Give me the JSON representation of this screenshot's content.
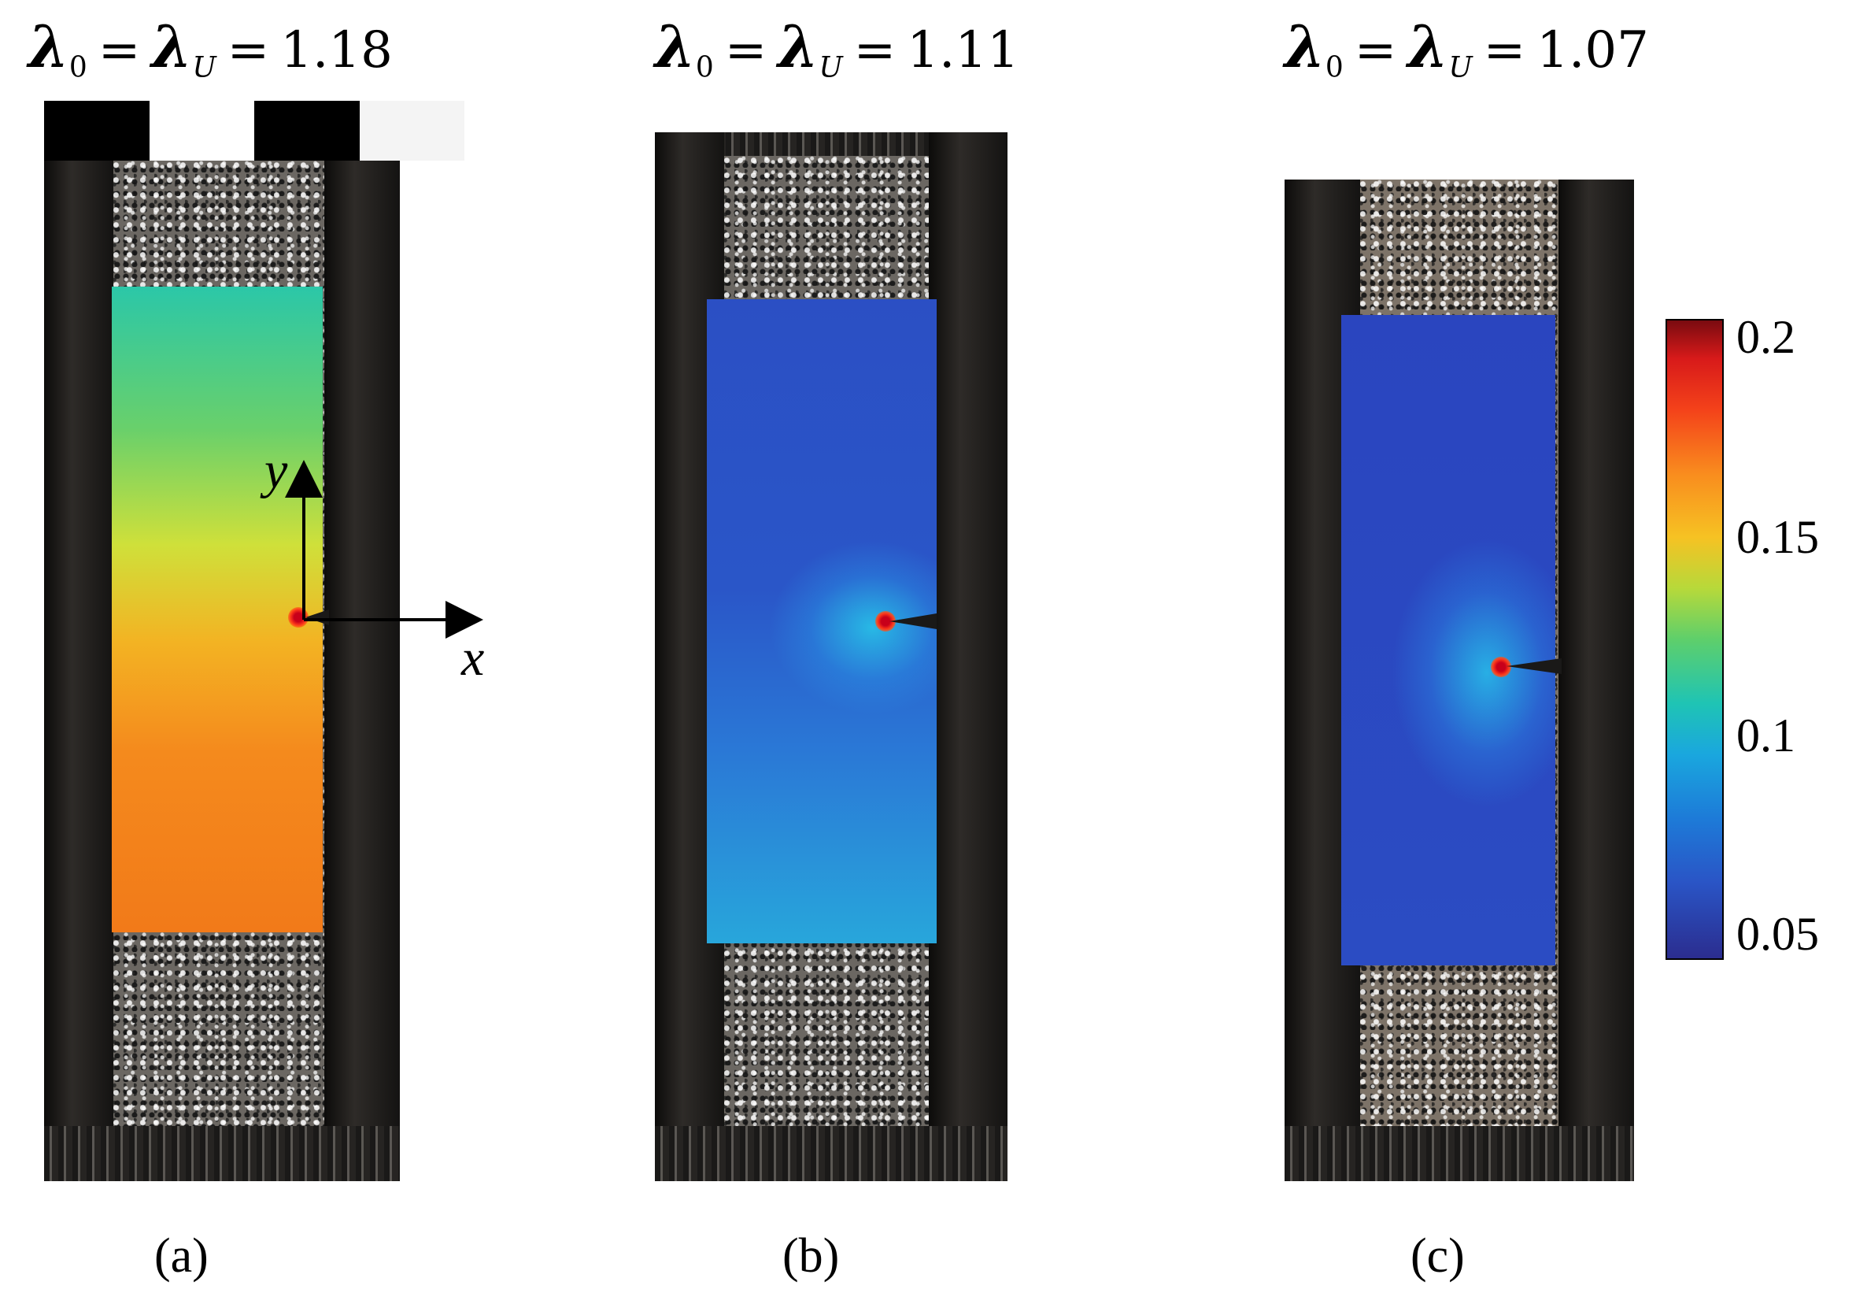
{
  "panels": [
    {
      "title": {
        "lambda0": "λ",
        "sub0": "0",
        "lambdaU": "λ",
        "subU": "U",
        "value": "1.18"
      },
      "caption": "(a)"
    },
    {
      "title": {
        "lambda0": "λ",
        "sub0": "0",
        "lambdaU": "λ",
        "subU": "U",
        "value": "1.11"
      },
      "caption": "(b)"
    },
    {
      "title": {
        "lambda0": "λ",
        "sub0": "0",
        "lambdaU": "λ",
        "subU": "U",
        "value": "1.07"
      },
      "caption": "(c)"
    }
  ],
  "axes": {
    "x_label": "x",
    "y_label": "y"
  },
  "colorbar": {
    "ticks": [
      "0.2",
      "0.15",
      "0.1",
      "0.05"
    ],
    "range": [
      0.05,
      0.2
    ],
    "colormap": "jet"
  },
  "colors": {
    "field_a_top": "#2bc7a8",
    "field_a_bottom": "#f27a19",
    "field_b": "#2b4fc4",
    "field_c": "#2a45bf",
    "crack_tip": "#c8001a"
  }
}
